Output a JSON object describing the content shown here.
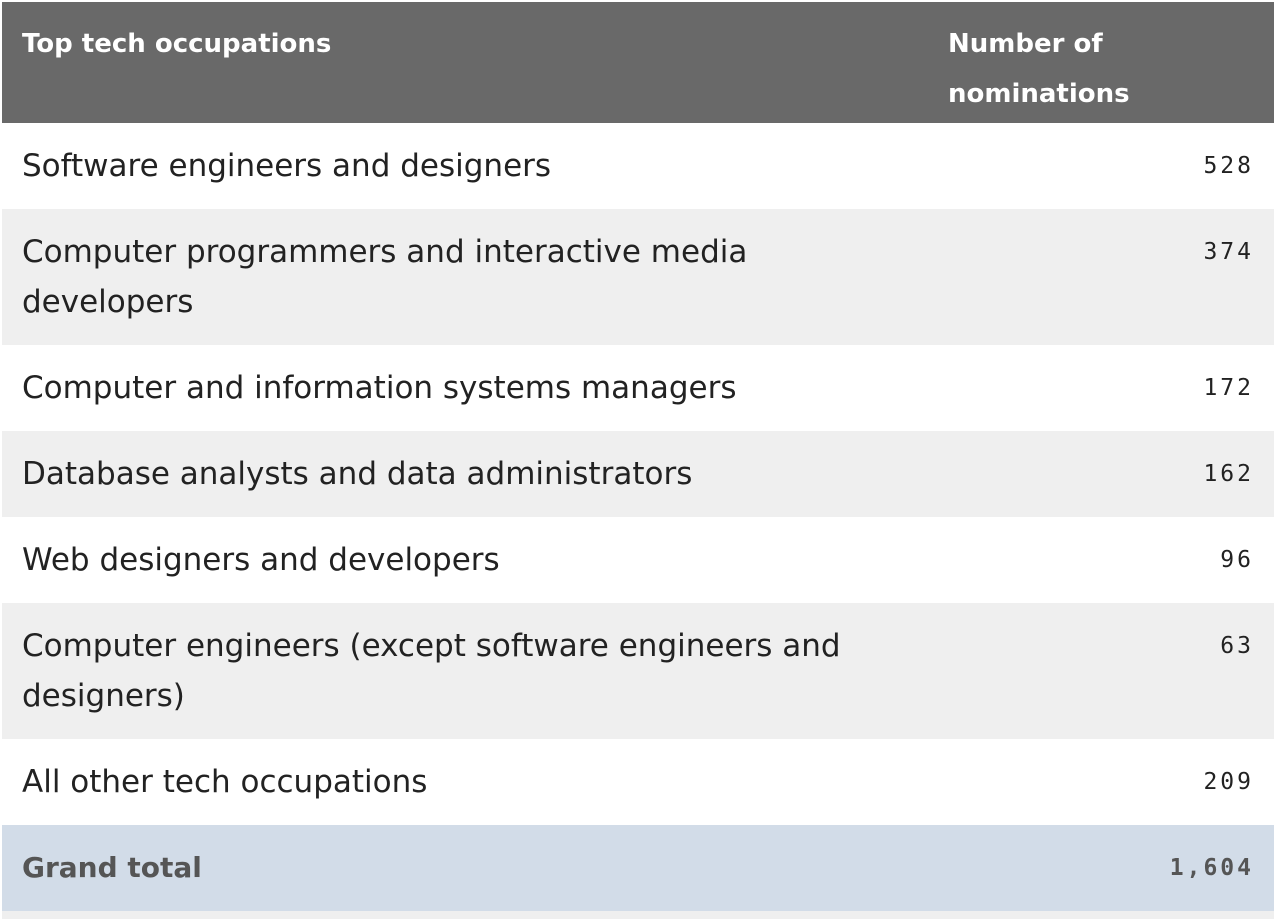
{
  "table": {
    "headers": {
      "occupation": "Top tech occupations",
      "nominations": "Number of nominations"
    },
    "rows": [
      {
        "occupation": "Software engineers and designers",
        "nominations": "528"
      },
      {
        "occupation": "Computer programmers and interactive media developers",
        "nominations": "374"
      },
      {
        "occupation": "Computer and information systems managers",
        "nominations": "172"
      },
      {
        "occupation": "Database analysts and data administrators",
        "nominations": "162"
      },
      {
        "occupation": "Web designers and developers",
        "nominations": "96"
      },
      {
        "occupation": "Computer engineers (except software engineers and designers)",
        "nominations": "63"
      },
      {
        "occupation": "All other tech occupations",
        "nominations": "209"
      }
    ],
    "total": {
      "label": "Grand total",
      "value": "1,604"
    }
  },
  "colors": {
    "header_bg": "#696969",
    "row_alt_bg": "#efefef",
    "total_bg": "#d2dce8"
  }
}
